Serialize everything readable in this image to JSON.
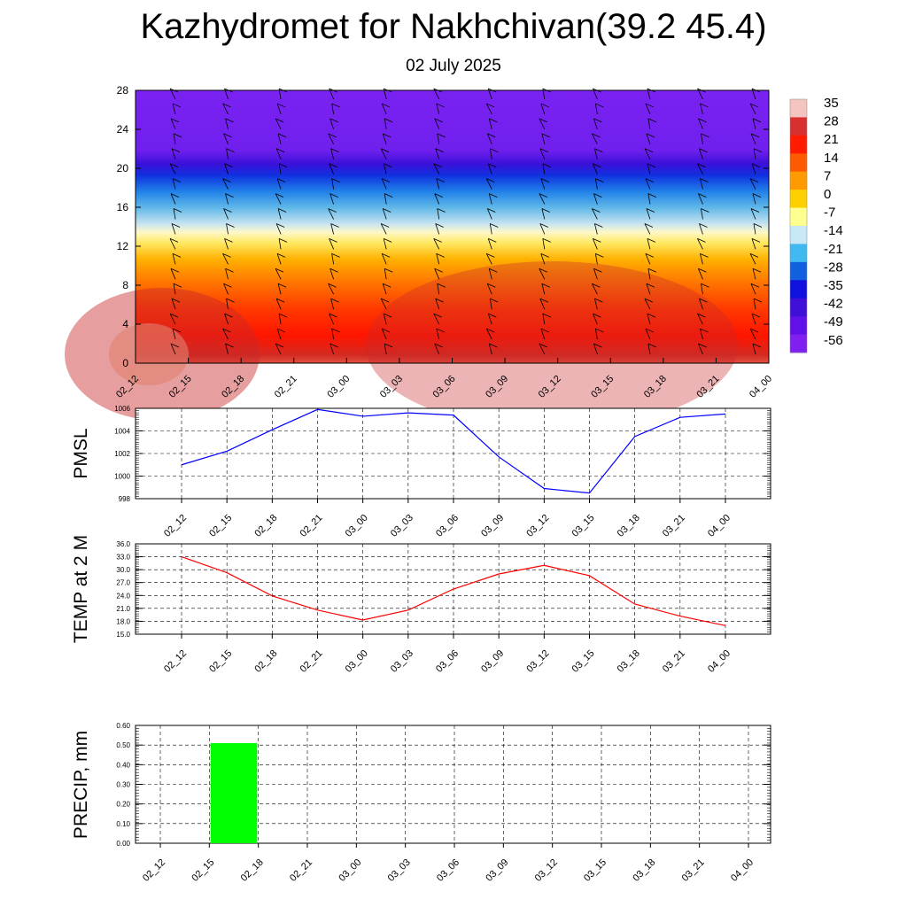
{
  "title": "Kazhydromet for Nakhchivan(39.2 45.4)",
  "subtitle": "02 July 2025",
  "colors": {
    "pmsl_line": "#0000ff",
    "temp_line": "#ff0000",
    "precip_bar": "#00ff00",
    "grid": "#000000"
  },
  "chart_data": [
    {
      "type": "heatmap",
      "name_hint": "cross-section",
      "x_ticks": [
        "02_12",
        "02_15",
        "02_18",
        "02_21",
        "03_00",
        "03_03",
        "03_06",
        "03_09",
        "03_12",
        "03_15",
        "03_18",
        "03_21",
        "04_00"
      ],
      "y_ticks": [
        "0",
        "4",
        "8",
        "12",
        "16",
        "20",
        "24",
        "28"
      ],
      "ylim": [
        0,
        28
      ],
      "colorbar_labels": [
        "35",
        "28",
        "21",
        "14",
        "7",
        "0",
        "-7",
        "-14",
        "-21",
        "-28",
        "-35",
        "-42",
        "-49",
        "-56"
      ],
      "colorbar_colors": [
        "#f4c4c0",
        "#d83030",
        "#ff1a00",
        "#ff5a00",
        "#ff9a00",
        "#ffd000",
        "#ffff90",
        "#c8e8f8",
        "#40b8f0",
        "#1060e0",
        "#1010e0",
        "#4010d8",
        "#6010e8",
        "#8020f0"
      ],
      "grid": false,
      "legend": "right"
    },
    {
      "type": "line",
      "ylabel": "PMSL",
      "x": [
        "02_12",
        "02_15",
        "02_18",
        "02_21",
        "03_00",
        "03_03",
        "03_06",
        "03_09",
        "03_12",
        "03_15",
        "03_18",
        "03_21",
        "04_00"
      ],
      "y_ticks": [
        "998",
        "1000",
        "1002",
        "1004",
        "1006"
      ],
      "ylim": [
        998,
        1006
      ],
      "series": [
        {
          "values": [
            1001.0,
            1002.2,
            1004.1,
            1005.9,
            1005.3,
            1005.6,
            1005.4,
            1001.7,
            998.9,
            998.5,
            1003.5,
            1005.2,
            1005.5
          ]
        }
      ],
      "grid": true
    },
    {
      "type": "line",
      "ylabel": "TEMP at 2 M",
      "x": [
        "02_12",
        "02_15",
        "02_18",
        "02_21",
        "03_00",
        "03_03",
        "03_06",
        "03_09",
        "03_12",
        "03_15",
        "03_18",
        "03_21",
        "04_00"
      ],
      "y_ticks": [
        "15.0",
        "18.0",
        "21.0",
        "24.0",
        "27.0",
        "30.0",
        "33.0",
        "36.0"
      ],
      "ylim": [
        15,
        36
      ],
      "series": [
        {
          "values": [
            33.0,
            29.3,
            23.9,
            20.6,
            18.3,
            20.6,
            25.5,
            29.0,
            31.0,
            28.6,
            22.0,
            19.2,
            17.0
          ]
        }
      ],
      "grid": true
    },
    {
      "type": "bar",
      "ylabel": "PRECIP, mm",
      "categories": [
        "02_12",
        "02_15",
        "02_18",
        "02_21",
        "03_00",
        "03_03",
        "03_06",
        "03_09",
        "03_12",
        "03_15",
        "03_18",
        "03_21",
        "04_00"
      ],
      "y_ticks": [
        "0.00",
        "0.10",
        "0.20",
        "0.30",
        "0.40",
        "0.50",
        "0.60"
      ],
      "ylim": [
        0,
        0.6
      ],
      "values": [
        0,
        0.51,
        0,
        0,
        0,
        0,
        0,
        0,
        0,
        0,
        0,
        0,
        0
      ],
      "grid": true
    }
  ]
}
